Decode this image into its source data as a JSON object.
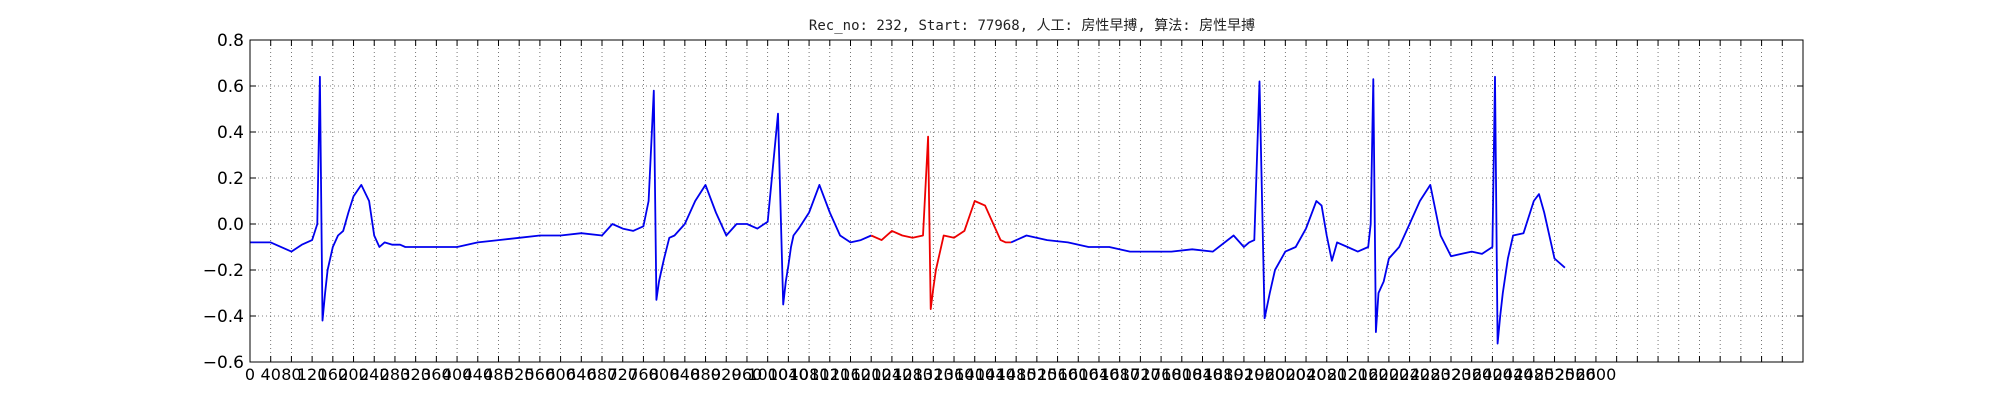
{
  "chart_data": {
    "type": "line",
    "title": "Rec_no: 232, Start: 77968, 人工: 房性早搏, 算法: 房性早搏",
    "xlabel": "",
    "ylabel": "",
    "xlim": [
      0,
      3000
    ],
    "ylim": [
      -0.6,
      0.8
    ],
    "yticks": [
      -0.6,
      -0.4,
      -0.2,
      0.0,
      0.2,
      0.4,
      0.6,
      0.8
    ],
    "ytick_labels": [
      "−0.6",
      "−0.4",
      "−0.2",
      "0.0",
      "0.2",
      "0.4",
      "0.6",
      "0.8"
    ],
    "xtick_step": 40,
    "xtick_max": 3000,
    "xtick_label_max": 2600,
    "grid": true,
    "series": [
      {
        "color": "#0000ee",
        "x": [
          0,
          40,
          80,
          100,
          120,
          130,
          135,
          140,
          145,
          150,
          160,
          170,
          180,
          190,
          200,
          215,
          230,
          240,
          250,
          260,
          275,
          290,
          300,
          320,
          360,
          400,
          440,
          480,
          520,
          560,
          600,
          640,
          680,
          700,
          720,
          740,
          760,
          770,
          780,
          785,
          790,
          795,
          800,
          810,
          820,
          840,
          860,
          880,
          900,
          920,
          940,
          960,
          980,
          1000,
          1020,
          1030,
          1035,
          1040,
          1045,
          1050,
          1060,
          1080,
          1100,
          1120,
          1140,
          1160,
          1180,
          1200
        ],
        "y": [
          -0.08,
          -0.08,
          -0.12,
          -0.09,
          -0.07,
          0.0,
          0.64,
          -0.42,
          -0.3,
          -0.2,
          -0.1,
          -0.05,
          -0.03,
          0.05,
          0.12,
          0.17,
          0.1,
          -0.05,
          -0.1,
          -0.08,
          -0.09,
          -0.09,
          -0.1,
          -0.1,
          -0.1,
          -0.1,
          -0.08,
          -0.07,
          -0.06,
          -0.05,
          -0.05,
          -0.04,
          -0.05,
          0.0,
          -0.02,
          -0.03,
          -0.01,
          0.1,
          0.58,
          -0.33,
          -0.25,
          -0.2,
          -0.15,
          -0.06,
          -0.05,
          0.0,
          0.1,
          0.17,
          0.05,
          -0.05,
          0.0,
          0.0,
          -0.02,
          0.01,
          0.48,
          -0.35,
          -0.25,
          -0.18,
          -0.1,
          -0.05,
          -0.02,
          0.05,
          0.17,
          0.05,
          -0.05,
          -0.08,
          -0.07,
          -0.05
        ]
      },
      {
        "color": "#ee0000",
        "x": [
          1200,
          1220,
          1240,
          1260,
          1280,
          1300,
          1310,
          1315,
          1320,
          1325,
          1330,
          1340,
          1360,
          1380,
          1400,
          1420,
          1440,
          1450,
          1460,
          1470
        ],
        "y": [
          -0.05,
          -0.07,
          -0.03,
          -0.05,
          -0.06,
          -0.05,
          0.38,
          -0.37,
          -0.28,
          -0.2,
          -0.15,
          -0.05,
          -0.06,
          -0.03,
          0.1,
          0.08,
          -0.02,
          -0.07,
          -0.08,
          -0.08
        ]
      },
      {
        "color": "#0000ee",
        "x": [
          1470,
          1500,
          1540,
          1580,
          1620,
          1660,
          1700,
          1740,
          1780,
          1820,
          1860,
          1900,
          1920,
          1930,
          1940,
          1950,
          1960,
          1970,
          1980,
          2000,
          2020,
          2040,
          2060,
          2070,
          2080,
          2090,
          2100,
          2120,
          2140,
          2160,
          2165,
          2170,
          2175,
          2180,
          2190,
          2200,
          2220,
          2240,
          2260,
          2280,
          2300,
          2320,
          2340,
          2360,
          2380,
          2400,
          2405,
          2410,
          2415,
          2420,
          2430,
          2440,
          2460,
          2480,
          2490,
          2500,
          2520,
          2540
        ],
        "y": [
          -0.08,
          -0.05,
          -0.07,
          -0.08,
          -0.1,
          -0.1,
          -0.12,
          -0.12,
          -0.12,
          -0.11,
          -0.12,
          -0.05,
          -0.1,
          -0.08,
          -0.07,
          0.62,
          -0.41,
          -0.3,
          -0.2,
          -0.12,
          -0.1,
          -0.02,
          0.1,
          0.08,
          -0.05,
          -0.16,
          -0.08,
          -0.1,
          -0.12,
          -0.1,
          0.0,
          0.63,
          -0.47,
          -0.3,
          -0.25,
          -0.15,
          -0.1,
          0.0,
          0.1,
          0.17,
          -0.05,
          -0.14,
          -0.13,
          -0.12,
          -0.13,
          -0.1,
          0.64,
          -0.52,
          -0.4,
          -0.3,
          -0.15,
          -0.05,
          -0.04,
          0.1,
          0.13,
          0.05,
          -0.15,
          -0.19
        ]
      }
    ]
  }
}
